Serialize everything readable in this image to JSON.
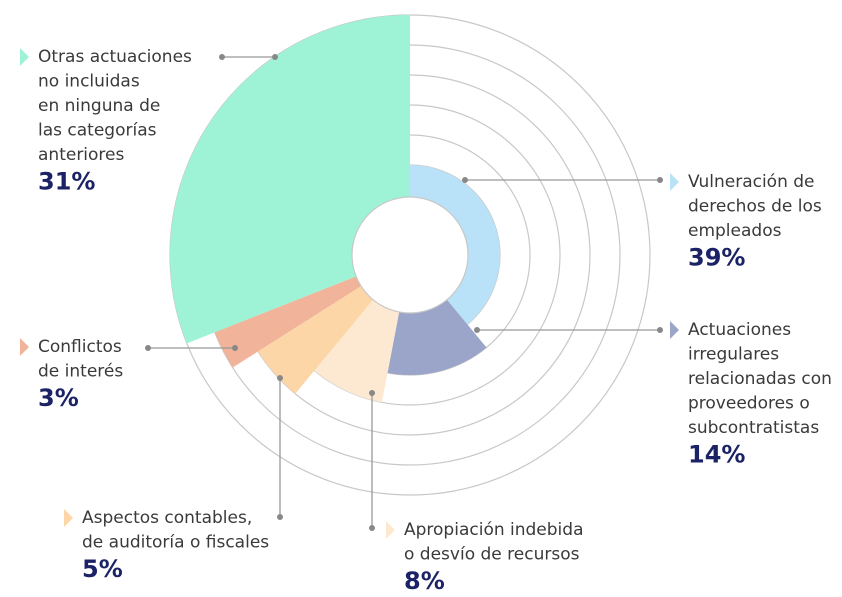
{
  "chart_data": {
    "type": "pie",
    "categories": [
      [
        "Vulneración de",
        "derechos de los",
        "empleados"
      ],
      [
        "Actuaciones",
        "irregulares",
        "relacionadas con",
        "proveedores o",
        "subcontratistas"
      ],
      [
        "Apropiación indebida",
        "o desvío de recursos"
      ],
      [
        "Aspectos contables,",
        "de auditoría o fiscales"
      ],
      [
        "Conflictos",
        "de interés"
      ],
      [
        "Otras actuaciones",
        "no incluidas",
        "en ninguna de",
        "las categorías",
        "anteriores"
      ]
    ],
    "values": [
      39,
      14,
      8,
      5,
      3,
      31
    ],
    "value_labels": [
      "39%",
      "14%",
      "8%",
      "5%",
      "3%",
      "31%"
    ],
    "colors": [
      "#b9e1f7",
      "#9ba4c9",
      "#fde9d2",
      "#fdd6a8",
      "#f1b39a",
      "#9ef3d7"
    ]
  }
}
